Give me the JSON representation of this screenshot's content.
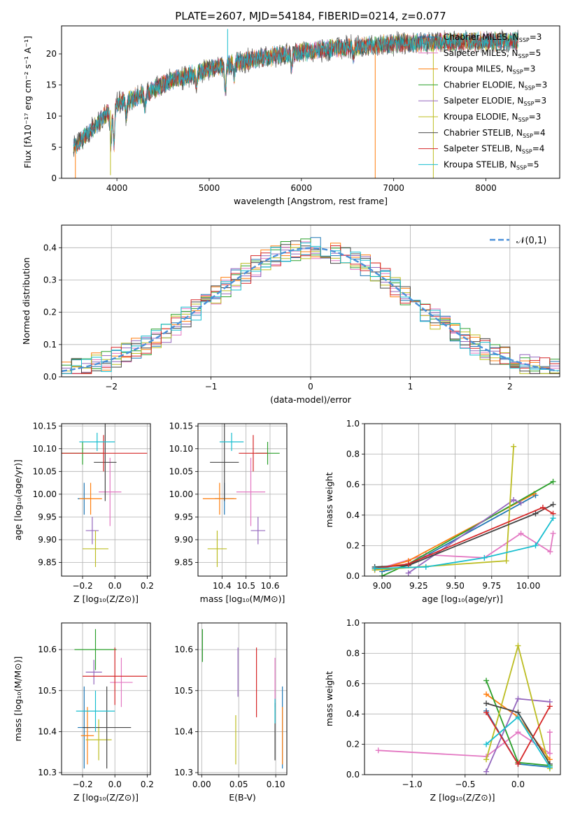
{
  "figure_title": "PLATE=2607, MJD=54184, FIBERID=0214, z=0.077",
  "colors": {
    "Chabrier MILES": "#1f77b4",
    "Salpeter MILES": "#e377c2",
    "Kroupa MILES": "#ff7f0e",
    "Chabrier ELODIE": "#2ca02c",
    "Salpeter ELODIE": "#9467bd",
    "Kroupa ELODIE": "#bcbd22",
    "Chabrier STELIB": "#444444",
    "Salpeter STELIB": "#d62728",
    "Kroupa STELIB": "#17becf",
    "normal": "#4a90d9"
  },
  "legend_spectrum": [
    {
      "pre": "Chabrier MILES, N",
      "sub": "SSP",
      "post": "=3",
      "key": "Chabrier MILES"
    },
    {
      "pre": "Salpeter MILES, N",
      "sub": "SSP",
      "post": "=5",
      "key": "Salpeter MILES"
    },
    {
      "pre": "Kroupa MILES, N",
      "sub": "SSP",
      "post": "=3",
      "key": "Kroupa MILES"
    },
    {
      "pre": "Chabrier ELODIE, N",
      "sub": "SSP",
      "post": "=3",
      "key": "Chabrier ELODIE"
    },
    {
      "pre": "Salpeter ELODIE, N",
      "sub": "SSP",
      "post": "=3",
      "key": "Salpeter ELODIE"
    },
    {
      "pre": "Kroupa ELODIE, N",
      "sub": "SSP",
      "post": "=3",
      "key": "Kroupa ELODIE"
    },
    {
      "pre": "Chabrier STELIB, N",
      "sub": "SSP",
      "post": "=4",
      "key": "Chabrier STELIB"
    },
    {
      "pre": "Salpeter STELIB, N",
      "sub": "SSP",
      "post": "=4",
      "key": "Salpeter STELIB"
    },
    {
      "pre": "Kroupa STELIB, N",
      "sub": "SSP",
      "post": "=5",
      "key": "Kroupa STELIB"
    }
  ],
  "chart_data": [
    {
      "id": "spectrum",
      "type": "line",
      "xlabel": "wavelength [Angstrom, rest frame]",
      "ylabel": "Flux [fλ10⁻¹⁷ erg cm⁻² s⁻¹ A⁻¹]",
      "xlim": [
        3400,
        8800
      ],
      "ylim": [
        0,
        24.5
      ],
      "xticks": [
        4000,
        5000,
        6000,
        7000,
        8000
      ],
      "yticks": [
        0,
        5,
        10,
        15,
        20
      ],
      "grid": false,
      "continuum_anchors": [
        [
          3530,
          5
        ],
        [
          3800,
          9
        ],
        [
          4000,
          12
        ],
        [
          4300,
          13.5
        ],
        [
          4600,
          15.8
        ],
        [
          5000,
          17.6
        ],
        [
          5500,
          19.2
        ],
        [
          6000,
          20.3
        ],
        [
          6500,
          21.1
        ],
        [
          7000,
          21.6
        ],
        [
          7500,
          21.9
        ],
        [
          8000,
          22.0
        ],
        [
          8350,
          22.1
        ]
      ],
      "absorption_features": [
        [
          3934,
          6
        ],
        [
          3968,
          6
        ],
        [
          4102,
          2.5
        ],
        [
          4304,
          2.5
        ],
        [
          4861,
          2
        ],
        [
          5175,
          4
        ],
        [
          5270,
          2
        ],
        [
          5893,
          2.5
        ],
        [
          6563,
          1.5
        ]
      ],
      "spikes": [
        {
          "x": 3550,
          "y": 0
        },
        {
          "x": 3930,
          "y": 0.5
        },
        {
          "x": 5200,
          "y": 24
        },
        {
          "x": 6800,
          "y": 0
        },
        {
          "x": 7430,
          "y": 0
        }
      ],
      "series": [
        "Chabrier MILES",
        "Salpeter MILES",
        "Kroupa MILES",
        "Chabrier ELODIE",
        "Salpeter ELODIE",
        "Kroupa ELODIE",
        "Chabrier STELIB",
        "Salpeter STELIB",
        "Kroupa STELIB"
      ]
    },
    {
      "id": "residuals",
      "type": "histogram",
      "xlabel": "(data-model)/error",
      "ylabel": "Normed distribution",
      "xlim": [
        -2.5,
        2.5
      ],
      "ylim": [
        0,
        0.47
      ],
      "xticks": [
        -2,
        -1,
        0,
        1,
        2
      ],
      "yticks": [
        0.0,
        0.1,
        0.2,
        0.3,
        0.4
      ],
      "grid": true,
      "bin_width": 0.1,
      "legend_label": "𝒩(0,1)",
      "reference_curve": "normal(0,1)",
      "series": [
        "Chabrier MILES",
        "Salpeter MILES",
        "Kroupa MILES",
        "Chabrier ELODIE",
        "Salpeter ELODIE",
        "Kroupa ELODIE",
        "Chabrier STELIB",
        "Salpeter STELIB",
        "Kroupa STELIB"
      ]
    },
    {
      "id": "age-vs-Z",
      "type": "scatter",
      "xlabel": "Z [log₁₀(Z/Z⊙)]",
      "ylabel": "age  [log₁₀(age/yr)]",
      "xlim": [
        -0.33,
        0.22
      ],
      "ylim": [
        9.82,
        10.155
      ],
      "xticks": [
        -0.2,
        0.0,
        0.2
      ],
      "yticks": [
        9.85,
        9.9,
        9.95,
        10.0,
        10.05,
        10.1,
        10.15
      ],
      "grid": true,
      "points": [
        {
          "series": "Chabrier MILES",
          "x": -0.19,
          "y": 9.99,
          "xerr": 0.04,
          "yerr": 0.035
        },
        {
          "series": "Salpeter MILES",
          "x": -0.03,
          "y": 10.005,
          "xerr": 0.07,
          "yerr": 0.075
        },
        {
          "series": "Kroupa MILES",
          "x": -0.15,
          "y": 9.99,
          "xerr": 0.07,
          "yerr": 0.035
        },
        {
          "series": "Chabrier ELODIE",
          "x": -0.2,
          "y": 10.09,
          "xerr": 0.13,
          "yerr": 0.025
        },
        {
          "series": "Salpeter ELODIE",
          "x": -0.14,
          "y": 9.92,
          "xerr": 0.04,
          "yerr": 0.03
        },
        {
          "series": "Kroupa ELODIE",
          "x": -0.12,
          "y": 9.88,
          "xerr": 0.08,
          "yerr": 0.04
        },
        {
          "series": "Chabrier STELIB",
          "x": -0.06,
          "y": 10.07,
          "xerr": 0.07,
          "yerr": 0.085
        },
        {
          "series": "Salpeter STELIB",
          "x": -0.07,
          "y": 10.09,
          "xerr": 0.27,
          "yerr": 0.04
        },
        {
          "series": "Kroupa STELIB",
          "x": -0.11,
          "y": 10.115,
          "xerr": 0.11,
          "yerr": 0.02
        }
      ]
    },
    {
      "id": "age-vs-mass",
      "type": "scatter",
      "xlabel": "mass [log₁₀(M/M⊙)]",
      "ylabel": "",
      "xlim": [
        10.3,
        10.67
      ],
      "ylim": [
        9.82,
        10.155
      ],
      "xticks": [
        10.4,
        10.5,
        10.6
      ],
      "yticks": [
        9.85,
        9.9,
        9.95,
        10.0,
        10.05,
        10.1,
        10.15
      ],
      "grid": true,
      "points": [
        {
          "series": "Chabrier MILES",
          "x": 10.41,
          "y": 9.99,
          "xerr": 0.04,
          "yerr": 0.035
        },
        {
          "series": "Salpeter MILES",
          "x": 10.52,
          "y": 10.005,
          "xerr": 0.06,
          "yerr": 0.075
        },
        {
          "series": "Kroupa MILES",
          "x": 10.39,
          "y": 9.99,
          "xerr": 0.07,
          "yerr": 0.035
        },
        {
          "series": "Chabrier ELODIE",
          "x": 10.59,
          "y": 10.09,
          "xerr": 0.05,
          "yerr": 0.025
        },
        {
          "series": "Salpeter ELODIE",
          "x": 10.55,
          "y": 9.92,
          "xerr": 0.03,
          "yerr": 0.03
        },
        {
          "series": "Kroupa ELODIE",
          "x": 10.38,
          "y": 9.88,
          "xerr": 0.04,
          "yerr": 0.04
        },
        {
          "series": "Chabrier STELIB",
          "x": 10.41,
          "y": 10.07,
          "xerr": 0.06,
          "yerr": 0.085
        },
        {
          "series": "Salpeter STELIB",
          "x": 10.53,
          "y": 10.09,
          "xerr": 0.06,
          "yerr": 0.04
        },
        {
          "series": "Kroupa STELIB",
          "x": 10.44,
          "y": 10.115,
          "xerr": 0.05,
          "yerr": 0.02
        }
      ]
    },
    {
      "id": "weight-vs-age",
      "type": "line",
      "xlabel": "age  [log₁₀(age/yr)]",
      "ylabel": "mass weight",
      "xlim": [
        8.88,
        10.22
      ],
      "ylim": [
        0,
        1.0
      ],
      "xticks": [
        9.0,
        9.25,
        9.5,
        9.75,
        10.0
      ],
      "yticks": [
        0.0,
        0.2,
        0.4,
        0.6,
        0.8,
        1.0
      ],
      "grid": true,
      "series": [
        {
          "name": "Chabrier MILES",
          "x": [
            9.0,
            9.18,
            10.05
          ],
          "y": [
            0.03,
            0.07,
            0.53
          ]
        },
        {
          "name": "Salpeter MILES",
          "x": [
            8.95,
            9.3,
            9.7,
            9.95,
            10.15,
            10.17
          ],
          "y": [
            0.04,
            0.14,
            0.12,
            0.28,
            0.16,
            0.28
          ]
        },
        {
          "name": "Kroupa MILES",
          "x": [
            9.0,
            9.18,
            10.04
          ],
          "y": [
            0.05,
            0.1,
            0.54
          ]
        },
        {
          "name": "Chabrier ELODIE",
          "x": [
            9.0,
            9.18,
            10.17
          ],
          "y": [
            0.0,
            0.08,
            0.62
          ]
        },
        {
          "name": "Salpeter ELODIE",
          "x": [
            9.18,
            9.9,
            9.95
          ],
          "y": [
            0.02,
            0.5,
            0.48
          ]
        },
        {
          "name": "Kroupa ELODIE",
          "x": [
            8.95,
            9.85,
            9.9
          ],
          "y": [
            0.04,
            0.1,
            0.85
          ]
        },
        {
          "name": "Chabrier STELIB",
          "x": [
            8.95,
            9.18,
            10.05,
            10.17
          ],
          "y": [
            0.06,
            0.07,
            0.41,
            0.47
          ]
        },
        {
          "name": "Salpeter STELIB",
          "x": [
            8.95,
            9.18,
            10.1,
            10.17
          ],
          "y": [
            0.05,
            0.08,
            0.45,
            0.41
          ]
        },
        {
          "name": "Kroupa STELIB",
          "x": [
            8.95,
            9.3,
            9.7,
            10.05,
            10.17
          ],
          "y": [
            0.05,
            0.06,
            0.12,
            0.2,
            0.38
          ]
        }
      ]
    },
    {
      "id": "mass-vs-Z",
      "type": "scatter",
      "xlabel": "Z [log₁₀(Z/Z⊙)]",
      "ylabel": "mass [log₁₀(M/M⊙)]",
      "xlim": [
        -0.33,
        0.22
      ],
      "ylim": [
        10.295,
        10.665
      ],
      "xticks": [
        -0.2,
        0.0,
        0.2
      ],
      "yticks": [
        10.3,
        10.4,
        10.5,
        10.6
      ],
      "grid": true,
      "points": [
        {
          "series": "Chabrier MILES",
          "x": -0.19,
          "y": 10.41,
          "xerr": 0.04,
          "yerr": 0.1
        },
        {
          "series": "Salpeter MILES",
          "x": 0.04,
          "y": 10.52,
          "xerr": 0.07,
          "yerr": 0.06
        },
        {
          "series": "Kroupa MILES",
          "x": -0.17,
          "y": 10.39,
          "xerr": 0.04,
          "yerr": 0.07
        },
        {
          "series": "Chabrier ELODIE",
          "x": -0.12,
          "y": 10.6,
          "xerr": 0.13,
          "yerr": 0.05
        },
        {
          "series": "Salpeter ELODIE",
          "x": -0.13,
          "y": 10.545,
          "xerr": 0.05,
          "yerr": 0.03
        },
        {
          "series": "Kroupa ELODIE",
          "x": -0.1,
          "y": 10.38,
          "xerr": 0.08,
          "yerr": 0.05
        },
        {
          "series": "Chabrier STELIB",
          "x": -0.05,
          "y": 10.41,
          "xerr": 0.15,
          "yerr": 0.1
        },
        {
          "series": "Salpeter STELIB",
          "x": 0.0,
          "y": 10.535,
          "xerr": 0.2,
          "yerr": 0.07
        },
        {
          "series": "Kroupa STELIB",
          "x": -0.12,
          "y": 10.45,
          "xerr": 0.12,
          "yerr": 0.05
        }
      ]
    },
    {
      "id": "mass-vs-EBV",
      "type": "scatter",
      "xlabel": "E(B-V)",
      "ylabel": "",
      "xlim": [
        -0.005,
        0.115
      ],
      "ylim": [
        10.295,
        10.665
      ],
      "xticks": [
        0.0,
        0.05,
        0.1
      ],
      "yticks": [
        10.3,
        10.4,
        10.5,
        10.6
      ],
      "grid": true,
      "points": [
        {
          "series": "Chabrier MILES",
          "x": 0.109,
          "y": 10.41,
          "xerr": 0,
          "yerr": 0.1
        },
        {
          "series": "Salpeter MILES",
          "x": 0.099,
          "y": 10.52,
          "xerr": 0,
          "yerr": 0.06
        },
        {
          "series": "Kroupa MILES",
          "x": 0.109,
          "y": 10.39,
          "xerr": 0,
          "yerr": 0.07
        },
        {
          "series": "Chabrier ELODIE",
          "x": 0.001,
          "y": 10.61,
          "xerr": 0,
          "yerr": 0.04
        },
        {
          "series": "Salpeter ELODIE",
          "x": 0.049,
          "y": 10.545,
          "xerr": 0,
          "yerr": 0.06
        },
        {
          "series": "Kroupa ELODIE",
          "x": 0.046,
          "y": 10.38,
          "xerr": 0,
          "yerr": 0.06
        },
        {
          "series": "Chabrier STELIB",
          "x": 0.099,
          "y": 10.4,
          "xerr": 0,
          "yerr": 0.07
        },
        {
          "series": "Salpeter STELIB",
          "x": 0.074,
          "y": 10.52,
          "xerr": 0,
          "yerr": 0.085
        },
        {
          "series": "Kroupa STELIB",
          "x": 0.099,
          "y": 10.45,
          "xerr": 0,
          "yerr": 0.03
        }
      ]
    },
    {
      "id": "weight-vs-Z",
      "type": "line",
      "xlabel": "Z [log₁₀(Z/Z⊙)]",
      "ylabel": "mass weight",
      "xlim": [
        -1.45,
        0.4
      ],
      "ylim": [
        0,
        1.0
      ],
      "xticks": [
        -1.0,
        -0.5,
        0.0
      ],
      "yticks": [
        0.0,
        0.2,
        0.4,
        0.6,
        0.8,
        1.0
      ],
      "grid": true,
      "series": [
        {
          "name": "Chabrier MILES",
          "x": [
            -0.3,
            0.0,
            0.3
          ],
          "y": [
            0.42,
            0.07,
            0.05
          ]
        },
        {
          "name": "Salpeter MILES",
          "x": [
            -1.32,
            -0.3,
            0.0,
            0.3,
            0.3
          ],
          "y": [
            0.16,
            0.12,
            0.28,
            0.14,
            0.28
          ]
        },
        {
          "name": "Kroupa MILES",
          "x": [
            -0.3,
            0.0,
            0.3
          ],
          "y": [
            0.53,
            0.38,
            0.1
          ]
        },
        {
          "name": "Chabrier ELODIE",
          "x": [
            -0.3,
            0.0,
            0.3
          ],
          "y": [
            0.62,
            0.08,
            0.06
          ]
        },
        {
          "name": "Salpeter ELODIE",
          "x": [
            -0.3,
            0.0,
            0.3
          ],
          "y": [
            0.02,
            0.5,
            0.48
          ]
        },
        {
          "name": "Kroupa ELODIE",
          "x": [
            -0.3,
            0.0,
            0.3
          ],
          "y": [
            0.1,
            0.85,
            0.04
          ]
        },
        {
          "name": "Chabrier STELIB",
          "x": [
            -0.3,
            0.0,
            0.3
          ],
          "y": [
            0.47,
            0.41,
            0.07
          ]
        },
        {
          "name": "Salpeter STELIB",
          "x": [
            -0.3,
            0.0,
            0.3
          ],
          "y": [
            0.41,
            0.07,
            0.45
          ]
        },
        {
          "name": "Kroupa STELIB",
          "x": [
            -0.3,
            0.0,
            0.3
          ],
          "y": [
            0.2,
            0.38,
            0.05
          ]
        }
      ]
    }
  ]
}
